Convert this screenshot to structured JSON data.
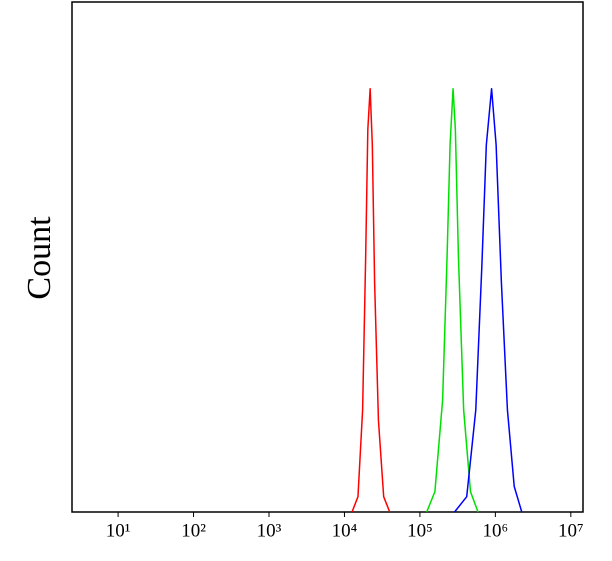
{
  "chart_data": {
    "type": "line",
    "ylabel": "Count",
    "xscale": "log",
    "xlim": [
      2.45,
      14500000
    ],
    "ylim": [
      0,
      100
    ],
    "xticks": [
      {
        "value": 10,
        "label": "10¹"
      },
      {
        "value": 100,
        "label": "10²"
      },
      {
        "value": 1000,
        "label": "10³"
      },
      {
        "value": 10000,
        "label": "10⁴"
      },
      {
        "value": 100000,
        "label": "10⁵"
      },
      {
        "value": 1000000,
        "label": "10⁶"
      },
      {
        "value": 10000000,
        "label": "10⁷"
      }
    ],
    "series": [
      {
        "color": "#ff0000",
        "x": [
          12600,
          15100,
          17400,
          19100,
          20400,
          21900,
          23400,
          25100,
          28200,
          33100,
          39800
        ],
        "values": [
          0,
          3,
          20,
          50,
          75,
          83,
          72,
          45,
          18,
          3,
          0
        ]
      },
      {
        "color": "#00e000",
        "x": [
          123000,
          158000,
          200000,
          229000,
          251000,
          275000,
          295000,
          324000,
          380000,
          468000,
          589000
        ],
        "values": [
          0,
          4,
          22,
          50,
          72,
          83,
          75,
          50,
          20,
          4,
          0
        ]
      },
      {
        "color": "#0000ff",
        "x": [
          288000,
          417000,
          550000,
          661000,
          759000,
          891000,
          1023000,
          1202000,
          1445000,
          1778000,
          2239000
        ],
        "values": [
          0,
          3,
          20,
          48,
          72,
          83,
          72,
          45,
          20,
          5,
          0
        ]
      }
    ]
  }
}
